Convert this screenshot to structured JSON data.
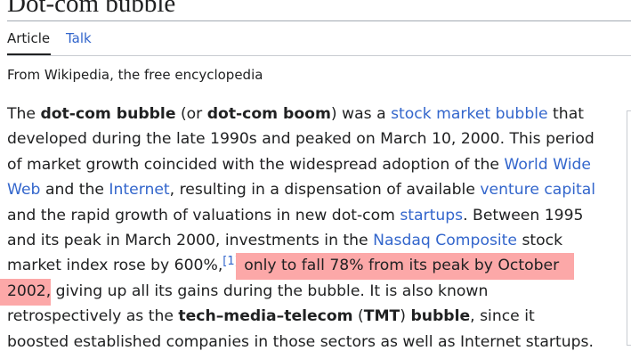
{
  "header": {
    "title": "Dot-com bubble"
  },
  "tabs": [
    "Article",
    "Talk"
  ],
  "tagline": "From Wikipedia, the free encyclopedia",
  "paragraph": {
    "lines": [
      [
        "The ",
        "dot-com bubble",
        " (or ",
        "dot-com boom",
        ") was a ",
        "stock market bubble",
        " that"
      ],
      [
        "developed during the late 1990s and peaked on March 10, 2000. This period"
      ],
      [
        "of market growth coincided with the widespread adoption of the ",
        "World Wide"
      ],
      [
        "Web",
        " and the ",
        "Internet",
        ", resulting in a dispensation of available ",
        "venture capital"
      ],
      [
        "and the rapid growth of valuations in new dot-com ",
        "startups",
        ". Between 1995"
      ],
      [
        "and its peak in March 2000, investments in the ",
        "Nasdaq Composite",
        " stock"
      ],
      [
        "market index rose by 600%,",
        "[1]",
        " ",
        "only to fall 78% from its peak by October"
      ],
      [
        "2002,",
        " giving up all its gains during the bubble. It is also known"
      ],
      [
        "retrospectively as the ",
        "tech–media–telecom",
        " (",
        "TMT",
        ") ",
        "bubble",
        ", since it"
      ],
      [
        "boosted established companies in those sectors as well as Internet startups."
      ]
    ]
  }
}
